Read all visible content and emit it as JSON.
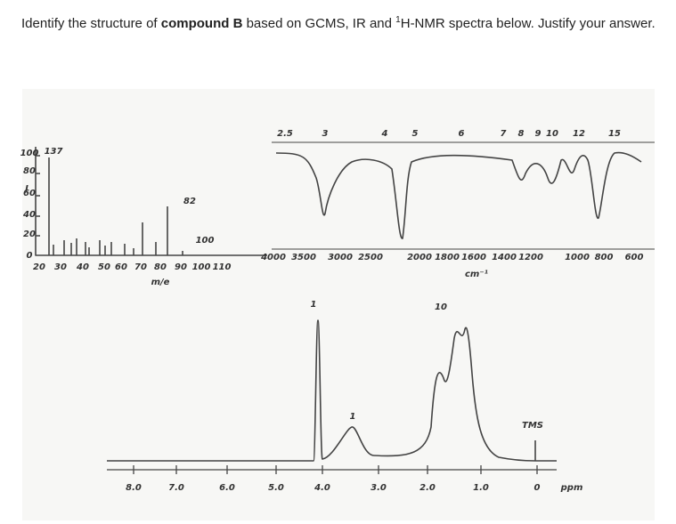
{
  "question": {
    "intro": "Identify the structure of ",
    "bold": "compound B",
    "middle": " based on GCMS, IR and ",
    "sup": "1",
    "end": "H-NMR spectra below. Justify your answer."
  },
  "mass_spectrum": {
    "y_labels": [
      "100",
      "80",
      "60",
      "40",
      "20",
      "0"
    ],
    "y_axis_label": "I",
    "peak_labels": [
      "137",
      "82",
      "100"
    ],
    "x_labels": [
      "20",
      "30",
      "40",
      "50",
      "60",
      "70",
      "80",
      "90",
      "100",
      "110"
    ],
    "x_axis_label": "m/e"
  },
  "ir_spectrum": {
    "top_labels": [
      "2.5",
      "3",
      "4",
      "5",
      "6",
      "7",
      "8",
      "9",
      "10",
      "12",
      "15"
    ],
    "bottom_labels": [
      "4000",
      "3500",
      "3000",
      "2500",
      "2000",
      "1800",
      "1600",
      "1400",
      "1200",
      "1000",
      "800",
      "600"
    ],
    "unit": "cm⁻¹"
  },
  "nmr_spectrum": {
    "integrations": [
      "1",
      "10",
      "1"
    ],
    "tms_label": "TMS",
    "ppm_labels": [
      "8.0",
      "7.0",
      "6.0",
      "5.0",
      "4.0",
      "3.0",
      "2.0",
      "1.0",
      "0"
    ],
    "unit": "ppm"
  }
}
